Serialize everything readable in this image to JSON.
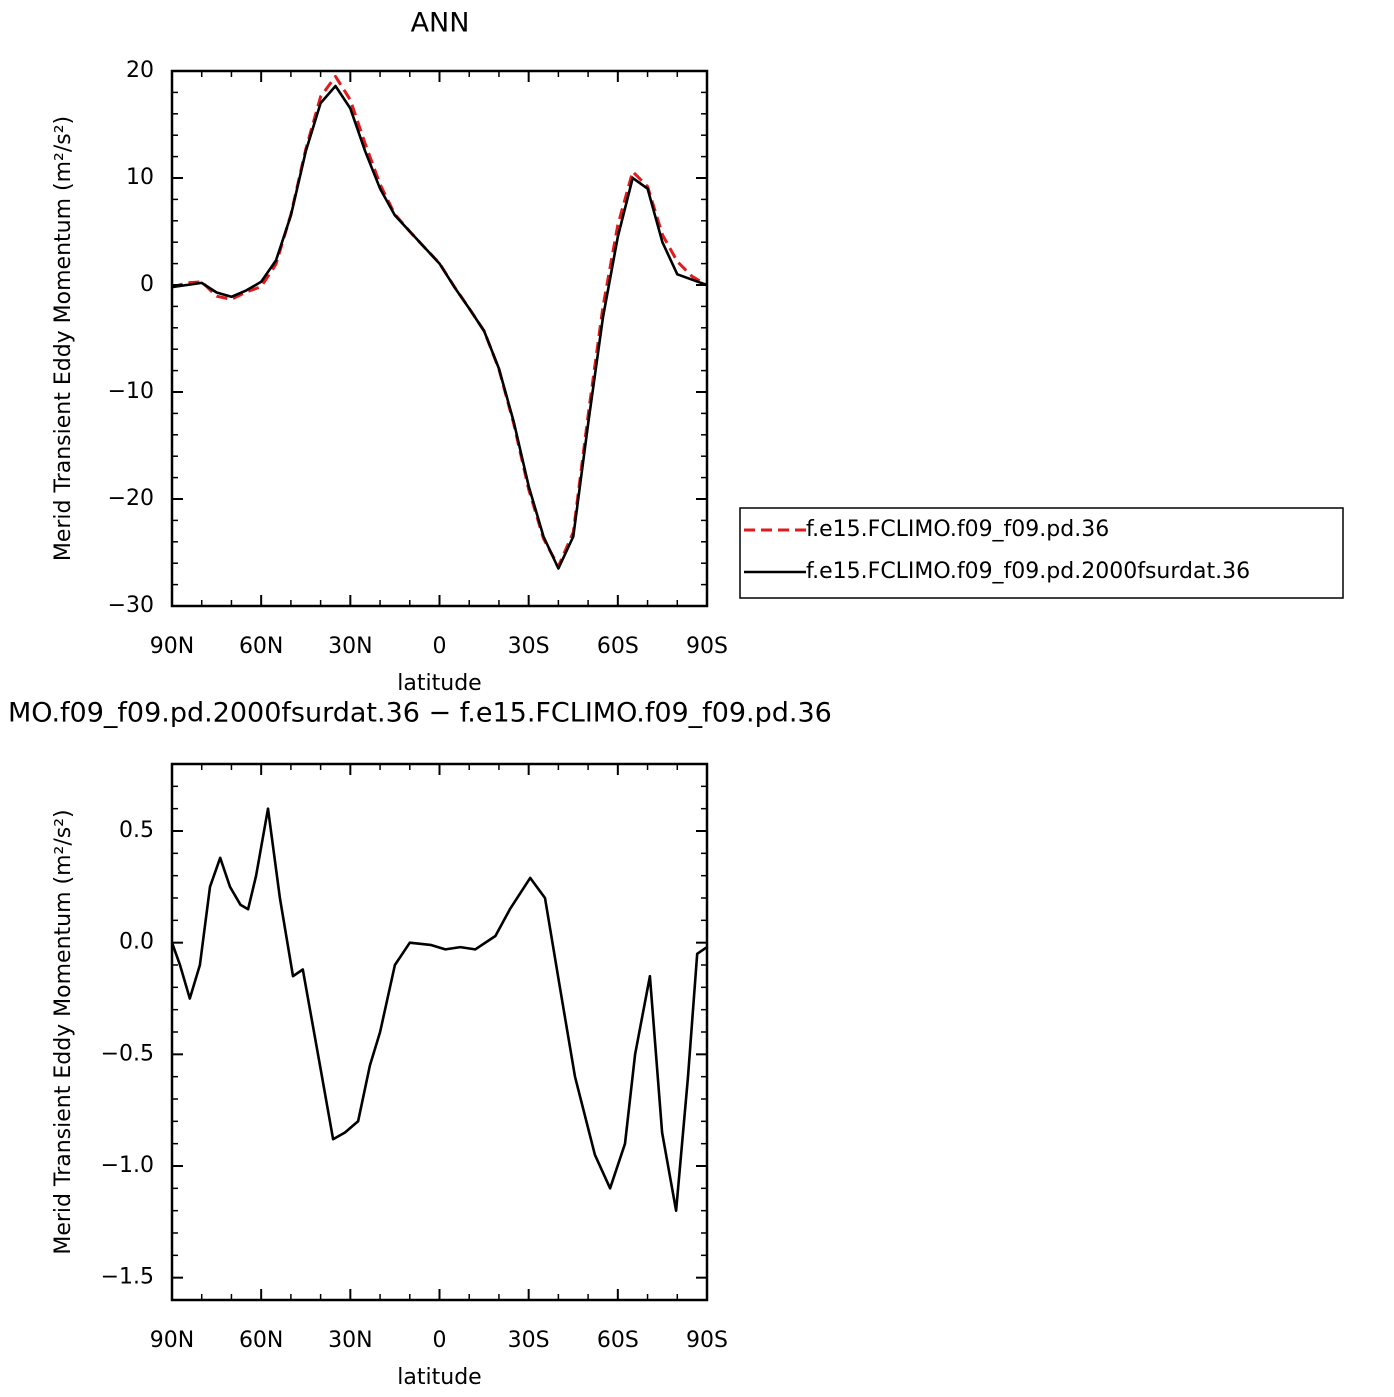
{
  "chart_data": [
    {
      "type": "line",
      "title": "ANN",
      "xlabel": "latitude",
      "ylabel": "Merid Transient Eddy Momentum (m²/s²)",
      "x": [
        90,
        85,
        80,
        75,
        70,
        65,
        60,
        55,
        50,
        45,
        40,
        35,
        30,
        25,
        20,
        15,
        10,
        5,
        0,
        -5,
        -10,
        -15,
        -20,
        -25,
        -30,
        -35,
        -40,
        -45,
        -50,
        -55,
        -60,
        -65,
        -70,
        -75,
        -80,
        -85,
        -90
      ],
      "series": [
        {
          "name": "f.e15.FCLIMO.f09_f09.pd.36",
          "color": "#e31a1c",
          "dashed": true,
          "values": [
            -0.2,
            0.2,
            0.3,
            -1.05,
            -1.35,
            -0.65,
            -0.15,
            1.95,
            6.6,
            12.7,
            17.6,
            19.5,
            17.3,
            13.2,
            9.4,
            6.6,
            5,
            3.5,
            2.03,
            -0.17,
            -2.18,
            -4.3,
            -7.85,
            -13,
            -19.1,
            -23.7,
            -26.3,
            -23.1,
            -12.2,
            -2,
            5.6,
            10.6,
            9.2,
            4.7,
            2.2,
            0.8,
            0
          ]
        },
        {
          "name": "f.e15.FCLIMO.f09_f09.pd.2000fsurdat.36",
          "color": "#000000",
          "dashed": false,
          "values": [
            -0.2,
            0,
            0.2,
            -0.7,
            -1.1,
            -0.5,
            0.3,
            2.3,
            6.5,
            12.5,
            17,
            18.6,
            16.5,
            12.5,
            9,
            6.5,
            5,
            3.5,
            2,
            -0.2,
            -2.2,
            -4.3,
            -7.8,
            -12.8,
            -18.8,
            -23.5,
            -26.5,
            -23.5,
            -13,
            -3,
            4.5,
            10,
            9,
            4,
            1,
            0.5,
            0
          ]
        }
      ],
      "xlim": [
        90,
        -90
      ],
      "xticks": [
        {
          "value": 90,
          "label": "90N"
        },
        {
          "value": 60,
          "label": "60N"
        },
        {
          "value": 30,
          "label": "30N"
        },
        0,
        {
          "value": -30,
          "label": "30S"
        },
        {
          "value": -60,
          "label": "60S"
        },
        {
          "value": -90,
          "label": "90S"
        }
      ],
      "xminorticks": [
        80,
        70,
        50,
        40,
        20,
        10,
        -10,
        -20,
        -40,
        -50,
        -70,
        -80
      ],
      "ylim": [
        -30,
        20
      ],
      "yticks": [
        20,
        10,
        0,
        {
          "value": -10,
          "label": "−10"
        },
        {
          "value": -20,
          "label": "−20"
        },
        {
          "value": -30,
          "label": "−30"
        }
      ],
      "yminorticks": [
        18,
        16,
        14,
        12,
        8,
        6,
        4,
        2,
        -2,
        -4,
        -6,
        -8,
        -12,
        -14,
        -16,
        -18,
        -22,
        -24,
        -26,
        -28
      ],
      "legend": true
    },
    {
      "type": "line",
      "title": "MO.f09_f09.pd.2000fsurdat.36 − f.e15.FCLIMO.f09_f09.pd.36",
      "xlabel": "latitude",
      "ylabel": "Merid Transient Eddy Momentum (m²/s²)",
      "x": [
        90,
        87.3,
        84,
        80.6,
        77.2,
        73.8,
        70.5,
        67,
        64.4,
        61.7,
        57.7,
        53.7,
        49.3,
        46,
        40.2,
        35.8,
        31.8,
        27.4,
        23.4,
        20,
        15,
        10,
        3,
        -2,
        -7,
        -12,
        -18.8,
        -23.7,
        -30.5,
        -35.5,
        -40.5,
        -45.6,
        -52.3,
        -57.4,
        -62.4,
        -65.8,
        -70.8,
        -74.9,
        -79.6,
        -83.6,
        -86.7,
        -90
      ],
      "series": [
        {
          "name": null,
          "color": "#000000",
          "dashed": false,
          "values": [
            0,
            -0.1,
            -0.25,
            -0.1,
            0.25,
            0.38,
            0.25,
            0.17,
            0.15,
            0.3,
            0.6,
            0.2,
            -0.15,
            -0.12,
            -0.55,
            -0.88,
            -0.85,
            -0.8,
            -0.55,
            -0.4,
            -0.1,
            0,
            -0.01,
            -0.03,
            -0.02,
            -0.03,
            0.03,
            0.15,
            0.29,
            0.2,
            -0.2,
            -0.6,
            -0.95,
            -1.1,
            -0.9,
            -0.5,
            -0.15,
            -0.85,
            -1.2,
            -0.6,
            -0.05,
            -0.02
          ]
        }
      ],
      "xlim": [
        90,
        -90
      ],
      "xticks": [
        {
          "value": 90,
          "label": "90N"
        },
        {
          "value": 60,
          "label": "60N"
        },
        {
          "value": 30,
          "label": "30N"
        },
        0,
        {
          "value": -30,
          "label": "30S"
        },
        {
          "value": -60,
          "label": "60S"
        },
        {
          "value": -90,
          "label": "90S"
        }
      ],
      "xminorticks": [
        80,
        70,
        50,
        40,
        20,
        10,
        -10,
        -20,
        -40,
        -50,
        -70,
        -80
      ],
      "ylim": [
        -1.6,
        0.8
      ],
      "yticks": [
        0.5,
        {
          "value": 0,
          "label": "0.0"
        },
        {
          "value": -0.5,
          "label": "−0.5"
        },
        {
          "value": -1,
          "label": "−1.0"
        },
        {
          "value": -1.5,
          "label": "−1.5"
        }
      ],
      "yminorticks": [
        0.7,
        0.6,
        0.4,
        0.3,
        0.2,
        0.1,
        -0.1,
        -0.2,
        -0.3,
        -0.4,
        -0.6,
        -0.7,
        -0.8,
        -0.9,
        -1.1,
        -1.2,
        -1.3,
        -1.4,
        -1.6
      ],
      "legend": false
    }
  ]
}
